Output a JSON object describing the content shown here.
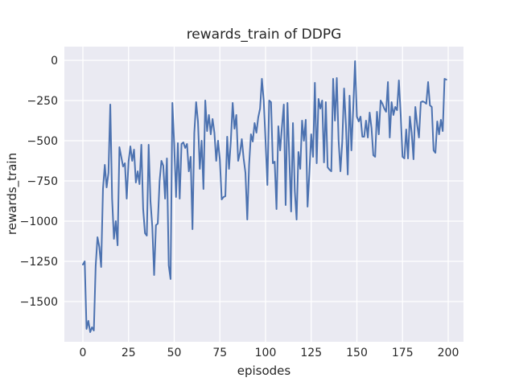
{
  "figure": {
    "title": "rewards_train of DDPG"
  },
  "style": {
    "figure_bg": "#ffffff",
    "axes_bg": "#eaeaf2",
    "grid_color": "#ffffff",
    "line_color": "#4c72b0",
    "text_color": "#262626",
    "tick_label_color": "#262626"
  },
  "chart_data": {
    "type": "line",
    "title": "rewards_train of DDPG",
    "xlabel": "episodes",
    "ylabel": "rewards_train",
    "grid": true,
    "legend": "none",
    "x": {
      "start": 0,
      "step": 1,
      "count": 200,
      "lim": [
        -10.13,
        208.37
      ],
      "ticks": [
        0,
        25,
        50,
        75,
        100,
        125,
        150,
        175,
        200
      ],
      "tick_labels": [
        "0",
        "25",
        "50",
        "75",
        "100",
        "125",
        "150",
        "175",
        "200"
      ]
    },
    "y": {
      "lim": [
        -1750,
        85
      ],
      "ticks": [
        0,
        -250,
        -500,
        -750,
        -1000,
        -1250,
        -1500
      ],
      "tick_labels": [
        "0",
        "−250",
        "−500",
        "−750",
        "−1000",
        "−1250",
        "−1500"
      ]
    },
    "series": [
      {
        "name": "rewards_train",
        "color": "#4c72b0",
        "values": [
          -1270,
          -1250,
          -1670,
          -1620,
          -1690,
          -1660,
          -1680,
          -1280,
          -1100,
          -1160,
          -1285,
          -800,
          -650,
          -790,
          -700,
          -275,
          -860,
          -1110,
          -1000,
          -1150,
          -540,
          -600,
          -660,
          -640,
          -860,
          -630,
          -535,
          -625,
          -555,
          -760,
          -690,
          -770,
          -525,
          -925,
          -1075,
          -1090,
          -525,
          -875,
          -1035,
          -1335,
          -1025,
          -1015,
          -750,
          -625,
          -655,
          -860,
          -610,
          -1275,
          -1360,
          -265,
          -525,
          -850,
          -515,
          -860,
          -520,
          -510,
          -545,
          -520,
          -690,
          -600,
          -1050,
          -450,
          -260,
          -380,
          -675,
          -500,
          -800,
          -250,
          -440,
          -340,
          -460,
          -365,
          -450,
          -625,
          -500,
          -620,
          -865,
          -850,
          -845,
          -475,
          -675,
          -500,
          -265,
          -425,
          -340,
          -625,
          -575,
          -490,
          -610,
          -700,
          -990,
          -650,
          -460,
          -505,
          -390,
          -450,
          -355,
          -300,
          -115,
          -250,
          -500,
          -775,
          -250,
          -260,
          -640,
          -630,
          -925,
          -410,
          -560,
          -410,
          -275,
          -900,
          -265,
          -600,
          -940,
          -390,
          -810,
          -990,
          -570,
          -675,
          -375,
          -500,
          -370,
          -910,
          -700,
          -460,
          -600,
          -140,
          -640,
          -240,
          -300,
          -250,
          -635,
          -260,
          -665,
          -680,
          -690,
          -115,
          -375,
          -110,
          -500,
          -690,
          -505,
          -175,
          -400,
          -710,
          -220,
          -560,
          -300,
          -5,
          -350,
          -380,
          -350,
          -475,
          -475,
          -375,
          -480,
          -325,
          -420,
          -590,
          -600,
          -320,
          -460,
          -250,
          -270,
          -300,
          -320,
          -135,
          -480,
          -260,
          -340,
          -290,
          -310,
          -125,
          -340,
          -600,
          -610,
          -430,
          -610,
          -350,
          -450,
          -615,
          -290,
          -400,
          -480,
          -260,
          -255,
          -260,
          -270,
          -135,
          -280,
          -290,
          -560,
          -575,
          -380,
          -460,
          -370,
          -440,
          -115,
          -120
        ]
      }
    ]
  }
}
